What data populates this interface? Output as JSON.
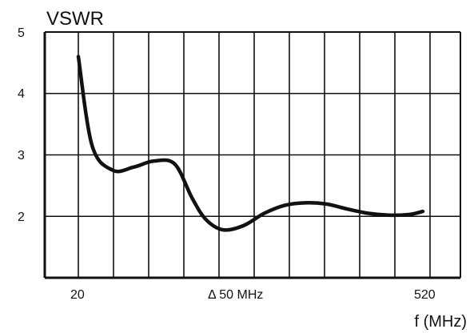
{
  "chart_data": {
    "type": "line",
    "title": "VSWR",
    "xlabel": "f (MHz)",
    "ylabel": "",
    "ylim": [
      1,
      5
    ],
    "y_ticks": [
      "5",
      "4",
      "3",
      "2"
    ],
    "x_tick_labels": [
      "20",
      "Δ 50 MHz",
      "520"
    ],
    "grid": true,
    "vertical_grid_count": 11,
    "series": [
      {
        "x": [
          20,
          40,
          70,
          100,
          130,
          160,
          185,
          205,
          230,
          260,
          290,
          320,
          350,
          380,
          410,
          440,
          470,
          500,
          520
        ],
        "values": [
          4.6,
          3.15,
          2.75,
          2.8,
          2.9,
          2.85,
          2.3,
          1.95,
          1.78,
          1.85,
          2.05,
          2.18,
          2.22,
          2.2,
          2.12,
          2.05,
          2.02,
          2.03,
          2.08
        ]
      }
    ]
  },
  "colors": {
    "line": "#111111",
    "grid": "#111111",
    "background": "#ffffff"
  }
}
